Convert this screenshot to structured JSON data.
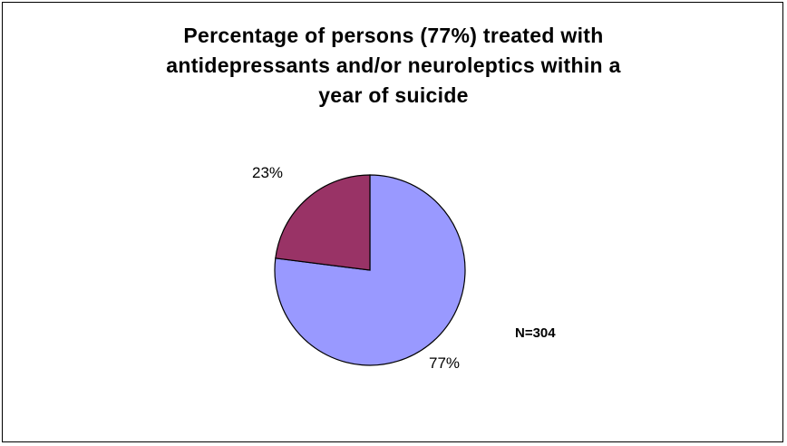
{
  "chart_data": {
    "type": "pie",
    "title": "Percentage of persons (77%) treated with\nantidepressants and/or neuroleptics within a\nyear of suicide",
    "slices": [
      {
        "value": 77,
        "label": "77%",
        "color": "#9999ff"
      },
      {
        "value": 23,
        "label": "23%",
        "color": "#993366"
      }
    ],
    "annotation": "N=304",
    "legend": "none"
  }
}
